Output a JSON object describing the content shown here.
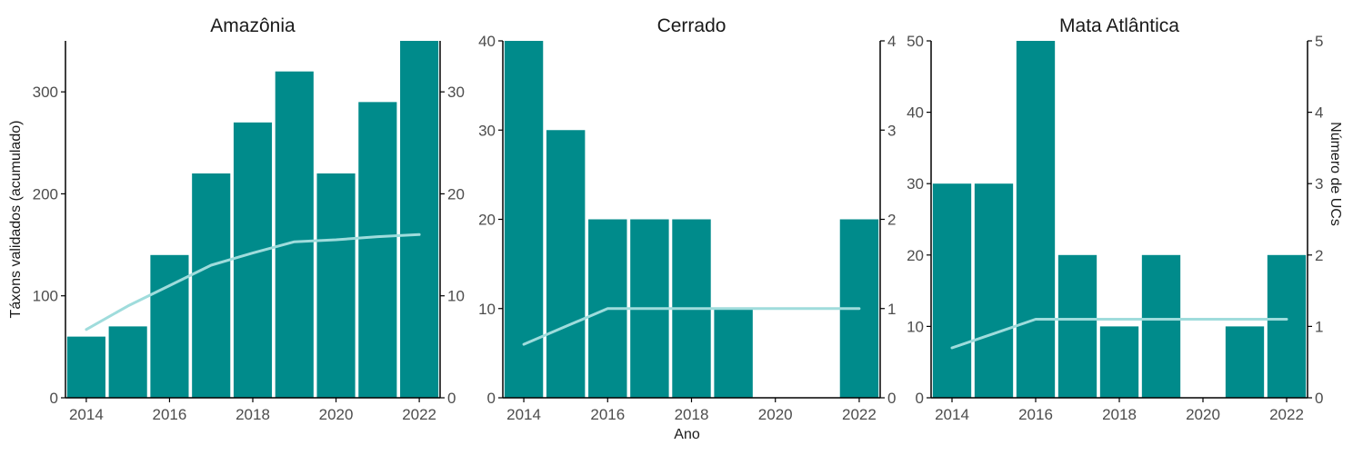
{
  "chart_data": {
    "type": "bar",
    "xlabel": "Ano",
    "ylabel_left": "Táxons validados (acumulado)",
    "ylabel_right": "Número de UCs",
    "x_ticks": [
      2014,
      2016,
      2018,
      2020,
      2022
    ],
    "colors": {
      "bar": "#008B8B",
      "line": "#9FDCDC"
    },
    "grid": false,
    "panels": [
      {
        "title": "Amazônia",
        "y_left_lim": [
          0,
          350
        ],
        "y_left_ticks": [
          0,
          100,
          200,
          300
        ],
        "y_right_lim": [
          0,
          35
        ],
        "y_right_ticks": [
          0,
          10,
          20,
          30
        ],
        "bars": {
          "series": "Número de UCs",
          "x": [
            2014,
            2015,
            2016,
            2017,
            2018,
            2019,
            2020,
            2021,
            2022
          ],
          "values": [
            6,
            7,
            14,
            22,
            27,
            32,
            22,
            29,
            35
          ]
        },
        "line": {
          "series": "Táxons validados (acumulado)",
          "x": [
            2014,
            2015,
            2016,
            2017,
            2018,
            2019,
            2020,
            2021,
            2022
          ],
          "values": [
            67,
            90,
            110,
            130,
            142,
            153,
            155,
            158,
            160
          ]
        }
      },
      {
        "title": "Cerrado",
        "y_left_lim": [
          0,
          40
        ],
        "y_left_ticks": [
          0,
          10,
          20,
          30,
          40
        ],
        "y_right_lim": [
          0,
          4
        ],
        "y_right_ticks": [
          0,
          1,
          2,
          3,
          4
        ],
        "bars": {
          "series": "Número de UCs",
          "x": [
            2014,
            2015,
            2016,
            2017,
            2018,
            2019,
            2020,
            2021,
            2022
          ],
          "values": [
            4,
            3,
            2,
            2,
            2,
            1,
            0,
            0,
            2
          ]
        },
        "line": {
          "series": "Táxons validados (acumulado)",
          "x": [
            2014,
            2015,
            2016,
            2017,
            2018,
            2019,
            2020,
            2021,
            2022
          ],
          "values": [
            6,
            8,
            10,
            10,
            10,
            10,
            10,
            10,
            10
          ]
        }
      },
      {
        "title": "Mata Atlântica",
        "y_left_lim": [
          0,
          50
        ],
        "y_left_ticks": [
          0,
          10,
          20,
          30,
          40,
          50
        ],
        "y_right_lim": [
          0,
          5
        ],
        "y_right_ticks": [
          0,
          1,
          2,
          3,
          4,
          5
        ],
        "bars": {
          "series": "Número de UCs",
          "x": [
            2014,
            2015,
            2016,
            2017,
            2018,
            2019,
            2020,
            2021,
            2022
          ],
          "values": [
            3,
            3,
            5,
            2,
            1,
            2,
            0,
            1,
            2
          ]
        },
        "line": {
          "series": "Táxons validados (acumulado)",
          "x": [
            2014,
            2015,
            2016,
            2017,
            2018,
            2019,
            2020,
            2021,
            2022
          ],
          "values": [
            7,
            9,
            11,
            11,
            11,
            11,
            11,
            11,
            11
          ]
        }
      }
    ]
  }
}
